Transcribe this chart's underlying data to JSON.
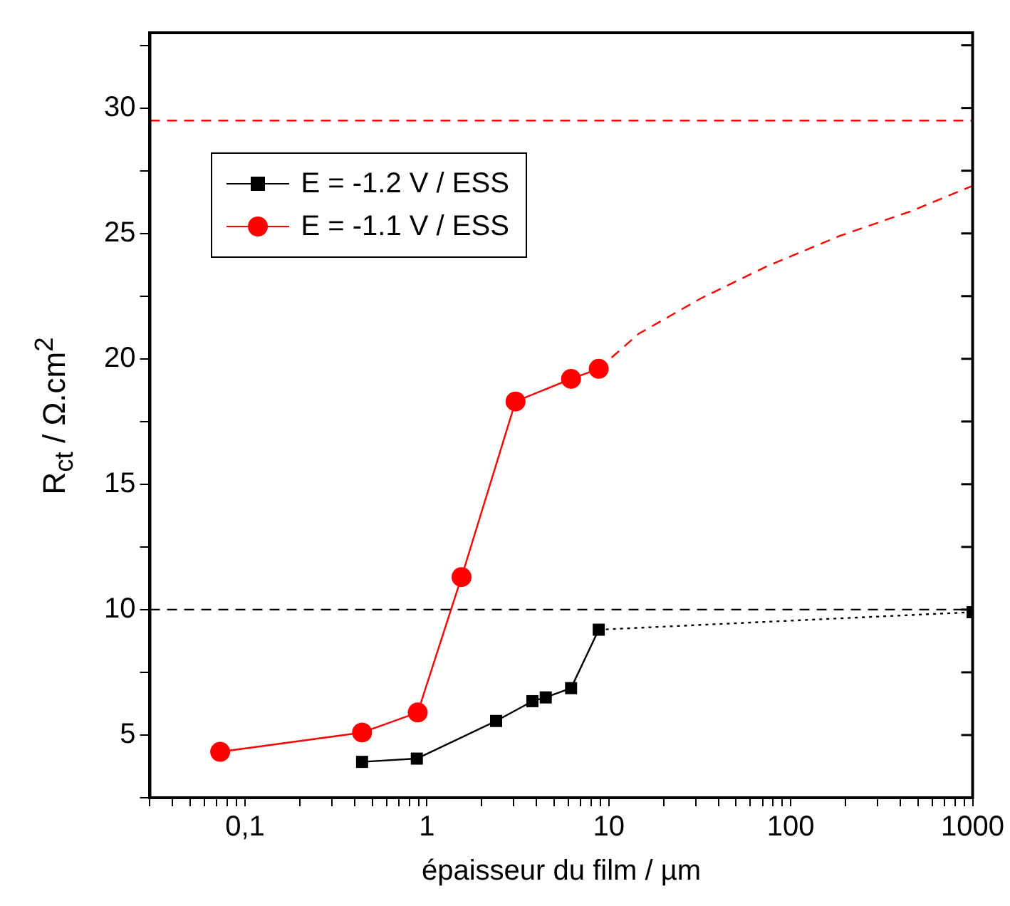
{
  "chart_data": {
    "type": "line",
    "xlabel": "épaisseur du film / µm",
    "ylabel": "R$_{ct}$ / Ω.cm$^{2}$",
    "log": "x",
    "grid": false,
    "legend": "top left",
    "xlim": [
      0.03,
      1000
    ],
    "xticks": [
      {
        "value": 0.03,
        "label": null
      },
      {
        "value": 0.04,
        "label": null
      },
      {
        "value": 0.05,
        "label": null
      },
      {
        "value": 0.06,
        "label": null
      },
      {
        "value": 0.07,
        "label": null
      },
      {
        "value": 0.08,
        "label": null
      },
      {
        "value": 0.09,
        "label": null
      },
      {
        "value": 0.1,
        "label": "0,1"
      },
      {
        "value": 0.2,
        "label": null
      },
      {
        "value": 0.3,
        "label": null
      },
      {
        "value": 0.4,
        "label": null
      },
      {
        "value": 0.5,
        "label": null
      },
      {
        "value": 0.6,
        "label": null
      },
      {
        "value": 0.7,
        "label": null
      },
      {
        "value": 0.8,
        "label": null
      },
      {
        "value": 0.9,
        "label": null
      },
      1,
      {
        "value": 2,
        "label": null
      },
      {
        "value": 3,
        "label": null
      },
      {
        "value": 4,
        "label": null
      },
      {
        "value": 5,
        "label": null
      },
      {
        "value": 6,
        "label": null
      },
      {
        "value": 7,
        "label": null
      },
      {
        "value": 8,
        "label": null
      },
      {
        "value": 9,
        "label": null
      },
      10,
      {
        "value": 20,
        "label": null
      },
      {
        "value": 30,
        "label": null
      },
      {
        "value": 40,
        "label": null
      },
      {
        "value": 50,
        "label": null
      },
      {
        "value": 60,
        "label": null
      },
      {
        "value": 70,
        "label": null
      },
      {
        "value": 80,
        "label": null
      },
      {
        "value": 90,
        "label": null
      },
      100,
      {
        "value": 200,
        "label": null
      },
      {
        "value": 300,
        "label": null
      },
      {
        "value": 400,
        "label": null
      },
      {
        "value": 500,
        "label": null
      },
      {
        "value": 600,
        "label": null
      },
      {
        "value": 700,
        "label": null
      },
      {
        "value": 800,
        "label": null
      },
      {
        "value": 900,
        "label": null
      },
      1000
    ],
    "ylim": [
      2.5,
      33
    ],
    "yticks": [
      {
        "value": 2.5,
        "label": null
      },
      5,
      {
        "value": 7.5,
        "label": null
      },
      10,
      {
        "value": 12.5,
        "label": null
      },
      15,
      {
        "value": 17.5,
        "label": null
      },
      20,
      {
        "value": 22.5,
        "label": null
      },
      25,
      {
        "value": 27.5,
        "label": null
      },
      30,
      {
        "value": 32.5,
        "label": null
      }
    ],
    "ref_lines": [
      {
        "axis": "y",
        "value": 29.5,
        "color": "#ff0000",
        "line_style": "dashed"
      },
      {
        "axis": "y",
        "value": 10,
        "color": "#000000",
        "line_style": "dashed"
      }
    ],
    "series": [
      {
        "name": "E = -1.2 V / ESS",
        "color": "#000000",
        "marker": "square",
        "line_style": "solid",
        "x": [
          0.44,
          0.88,
          2.4,
          3.8,
          4.5,
          6.2,
          8.8
        ],
        "values": [
          3.93,
          4.06,
          5.56,
          6.35,
          6.5,
          6.87,
          9.2
        ]
      },
      {
        "name": "E = -1.1 V / ESS",
        "color": "#ff0000",
        "marker": "circle",
        "line_style": "solid",
        "x": [
          0.073,
          0.44,
          0.89,
          1.55,
          3.07,
          6.2,
          8.8
        ],
        "values": [
          4.33,
          5.1,
          5.9,
          11.3,
          18.3,
          19.2,
          19.6
        ]
      },
      {
        "type": "line",
        "color": "#000000",
        "marker": "none",
        "line_style": "dotted",
        "x": [
          8.8,
          1000
        ],
        "values": [
          9.2,
          9.9
        ]
      },
      {
        "type": "scatter",
        "color": "#000000",
        "marker": "square",
        "x": [
          1000
        ],
        "values": [
          9.9
        ]
      },
      {
        "type": "line",
        "color": "#ff0000",
        "marker": "none",
        "line_style": "dashed",
        "x": [
          8.8,
          14.6,
          31.9,
          74.5,
          186,
          464,
          1000
        ],
        "values": [
          19.6,
          21.0,
          22.4,
          23.7,
          24.9,
          25.9,
          26.9
        ]
      }
    ]
  }
}
